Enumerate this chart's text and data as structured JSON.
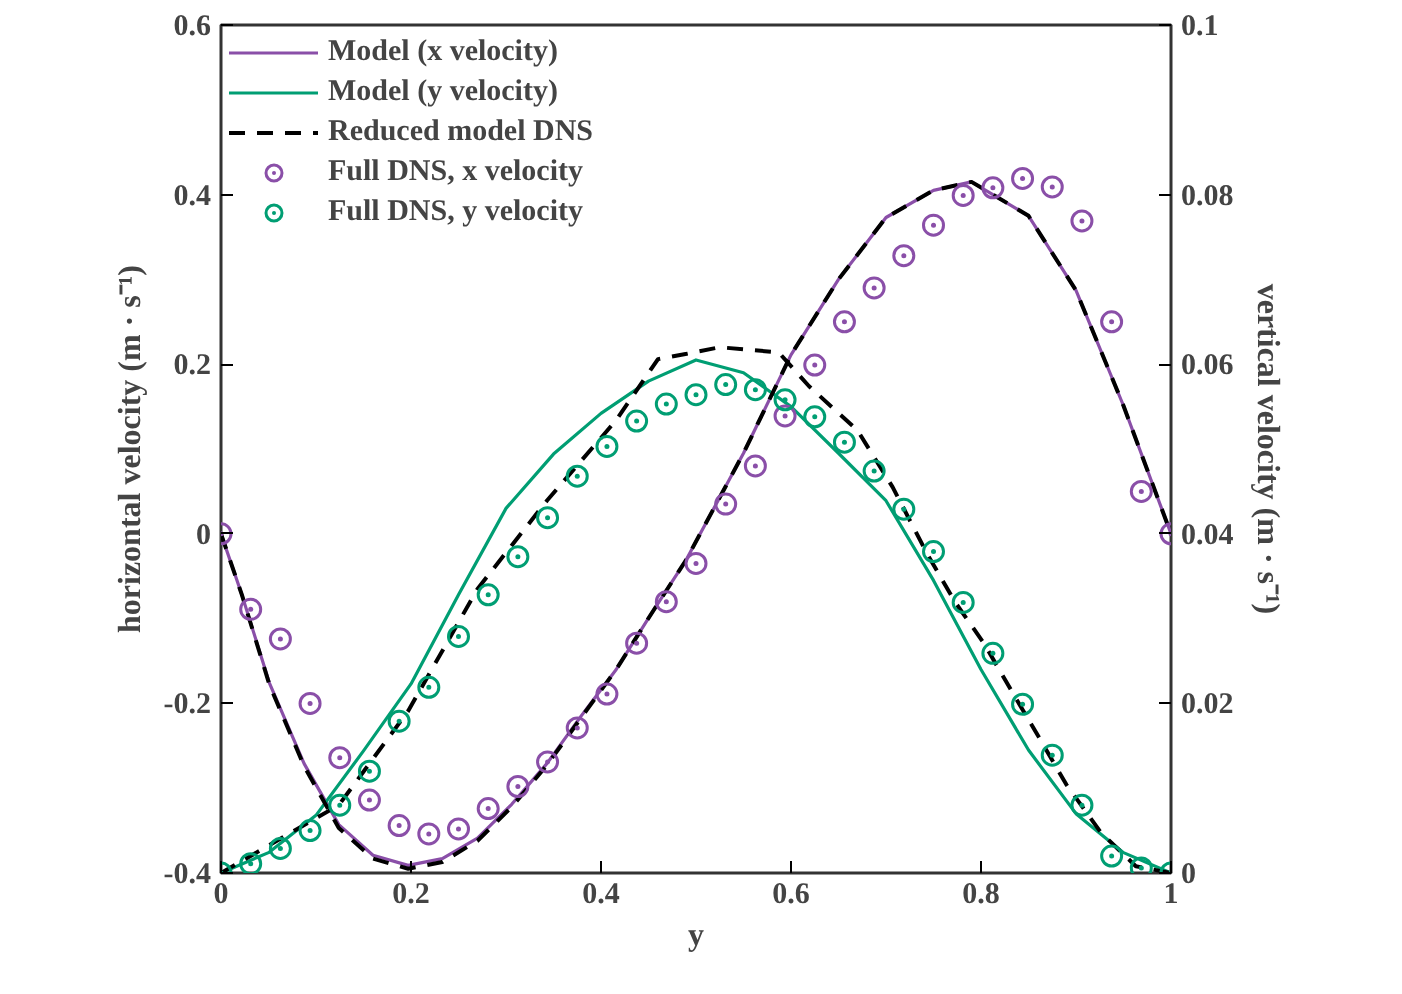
{
  "chart_data": {
    "type": "line",
    "xlabel": "y",
    "ylabel": "horizontal velocity (m · s⁻¹)",
    "y2label": "vertical velocity (m · s⁻¹)",
    "xlim": [
      0,
      1
    ],
    "xticks": [
      0,
      0.2,
      0.4,
      0.6,
      0.8,
      1
    ],
    "ylim": [
      -0.4,
      0.6
    ],
    "yticks": [
      -0.4,
      -0.2,
      0,
      0.2,
      0.4,
      0.6
    ],
    "y2lim": [
      0,
      0.1
    ],
    "y2ticks": [
      0,
      0.02,
      0.04,
      0.06,
      0.08,
      0.1
    ],
    "grid": false,
    "legend": "top left",
    "series": [
      {
        "name": "Model (x velocity)",
        "color": "#8a4fa8",
        "line_style": "solid",
        "x": [
          0,
          0.022,
          0.051,
          0.0875,
          0.124,
          0.16,
          0.197,
          0.233,
          0.27,
          0.306,
          0.343,
          0.379,
          0.416,
          0.452,
          0.489,
          0.55,
          0.6,
          0.65,
          0.7,
          0.75,
          0.79,
          0.85,
          0.9,
          0.95,
          1
        ],
        "values": [
          0,
          -0.072,
          -0.176,
          -0.271,
          -0.343,
          -0.379,
          -0.391,
          -0.383,
          -0.359,
          -0.319,
          -0.271,
          -0.215,
          -0.16,
          -0.096,
          -0.032,
          0.095,
          0.211,
          0.3,
          0.373,
          0.405,
          0.415,
          0.375,
          0.287,
          0.151,
          0
        ]
      },
      {
        "name": "Model (y velocity)",
        "axis": "y2",
        "color": "#009e73",
        "line_style": "solid",
        "x": [
          0,
          0.05,
          0.1,
          0.15,
          0.2,
          0.25,
          0.3,
          0.35,
          0.4,
          0.45,
          0.5,
          0.55,
          0.6,
          0.65,
          0.7,
          0.75,
          0.8,
          0.85,
          0.9,
          0.95,
          1
        ],
        "values": [
          0,
          0.0024,
          0.0068,
          0.0144,
          0.0223,
          0.0328,
          0.043,
          0.0494,
          0.0542,
          0.058,
          0.0605,
          0.059,
          0.055,
          0.0495,
          0.0439,
          0.0345,
          0.024,
          0.0145,
          0.007,
          0.0024,
          0
        ]
      },
      {
        "name": "Reduced model DNS",
        "color": "#000000",
        "line_style": "dashed",
        "x": [
          0,
          0.022,
          0.051,
          0.0875,
          0.124,
          0.16,
          0.197,
          0.233,
          0.27,
          0.306,
          0.343,
          0.379,
          0.416,
          0.452,
          0.489,
          0.55,
          0.6,
          0.65,
          0.7,
          0.75,
          0.79,
          0.85,
          0.9,
          0.95,
          1
        ],
        "values": [
          0,
          -0.072,
          -0.178,
          -0.274,
          -0.347,
          -0.383,
          -0.395,
          -0.387,
          -0.362,
          -0.322,
          -0.273,
          -0.217,
          -0.16,
          -0.096,
          -0.032,
          0.095,
          0.211,
          0.3,
          0.373,
          0.405,
          0.415,
          0.375,
          0.287,
          0.151,
          0
        ]
      },
      {
        "axis": "y2",
        "color": "#000000",
        "line_style": "dashed",
        "x": [
          0,
          0.124,
          0.197,
          0.27,
          0.343,
          0.416,
          0.46,
          0.489,
          0.525,
          0.587,
          0.619,
          0.67,
          0.707,
          0.744,
          0.773,
          0.803,
          0.832,
          0.861,
          0.89,
          0.926,
          0.963,
          1
        ],
        "values": [
          0,
          0.008,
          0.0191,
          0.0335,
          0.0439,
          0.0534,
          0.0606,
          0.0612,
          0.062,
          0.0614,
          0.0574,
          0.0522,
          0.0455,
          0.0375,
          0.0319,
          0.0271,
          0.0215,
          0.016,
          0.0104,
          0.0048,
          0.0008,
          0
        ]
      },
      {
        "name": "Full DNS, x velocity",
        "type": "scatter",
        "marker": "circle",
        "color": "#8a4fa8",
        "x": [
          0,
          0.03125,
          0.0625,
          0.09375,
          0.125,
          0.15625,
          0.1875,
          0.21875,
          0.25,
          0.28125,
          0.3125,
          0.34375,
          0.375,
          0.40625,
          0.4375,
          0.46875,
          0.5,
          0.53125,
          0.5625,
          0.59375,
          0.625,
          0.65625,
          0.6875,
          0.71875,
          0.75,
          0.78125,
          0.8125,
          0.84375,
          0.875,
          0.90625,
          0.9375,
          0.96875,
          1
        ],
        "values": [
          0,
          -0.089,
          -0.124,
          -0.2,
          -0.264,
          -0.314,
          -0.344,
          -0.354,
          -0.348,
          -0.324,
          -0.298,
          -0.269,
          -0.229,
          -0.189,
          -0.129,
          -0.08,
          -0.035,
          0.035,
          0.08,
          0.139,
          0.199,
          0.25,
          0.29,
          0.328,
          0.364,
          0.399,
          0.408,
          0.419,
          0.409,
          0.369,
          0.25,
          0.05,
          0
        ]
      },
      {
        "name": "Full DNS, y velocity",
        "type": "scatter",
        "marker": "circle",
        "axis": "y2",
        "color": "#009e73",
        "x": [
          0,
          0.03125,
          0.0625,
          0.09375,
          0.125,
          0.15625,
          0.1875,
          0.21875,
          0.25,
          0.28125,
          0.3125,
          0.34375,
          0.375,
          0.40625,
          0.4375,
          0.46875,
          0.5,
          0.53125,
          0.5625,
          0.59375,
          0.625,
          0.65625,
          0.6875,
          0.71875,
          0.75,
          0.78125,
          0.8125,
          0.84375,
          0.875,
          0.90625,
          0.9375,
          0.96875,
          1
        ],
        "values": [
          0,
          0.0011,
          0.0029,
          0.005,
          0.008,
          0.012,
          0.0179,
          0.0219,
          0.0279,
          0.0328,
          0.0373,
          0.0419,
          0.0468,
          0.0503,
          0.0533,
          0.0553,
          0.0564,
          0.0576,
          0.057,
          0.0558,
          0.0538,
          0.0508,
          0.0474,
          0.0429,
          0.0379,
          0.0319,
          0.0259,
          0.0199,
          0.0139,
          0.008,
          0.002,
          0.0006,
          0
        ]
      }
    ]
  }
}
